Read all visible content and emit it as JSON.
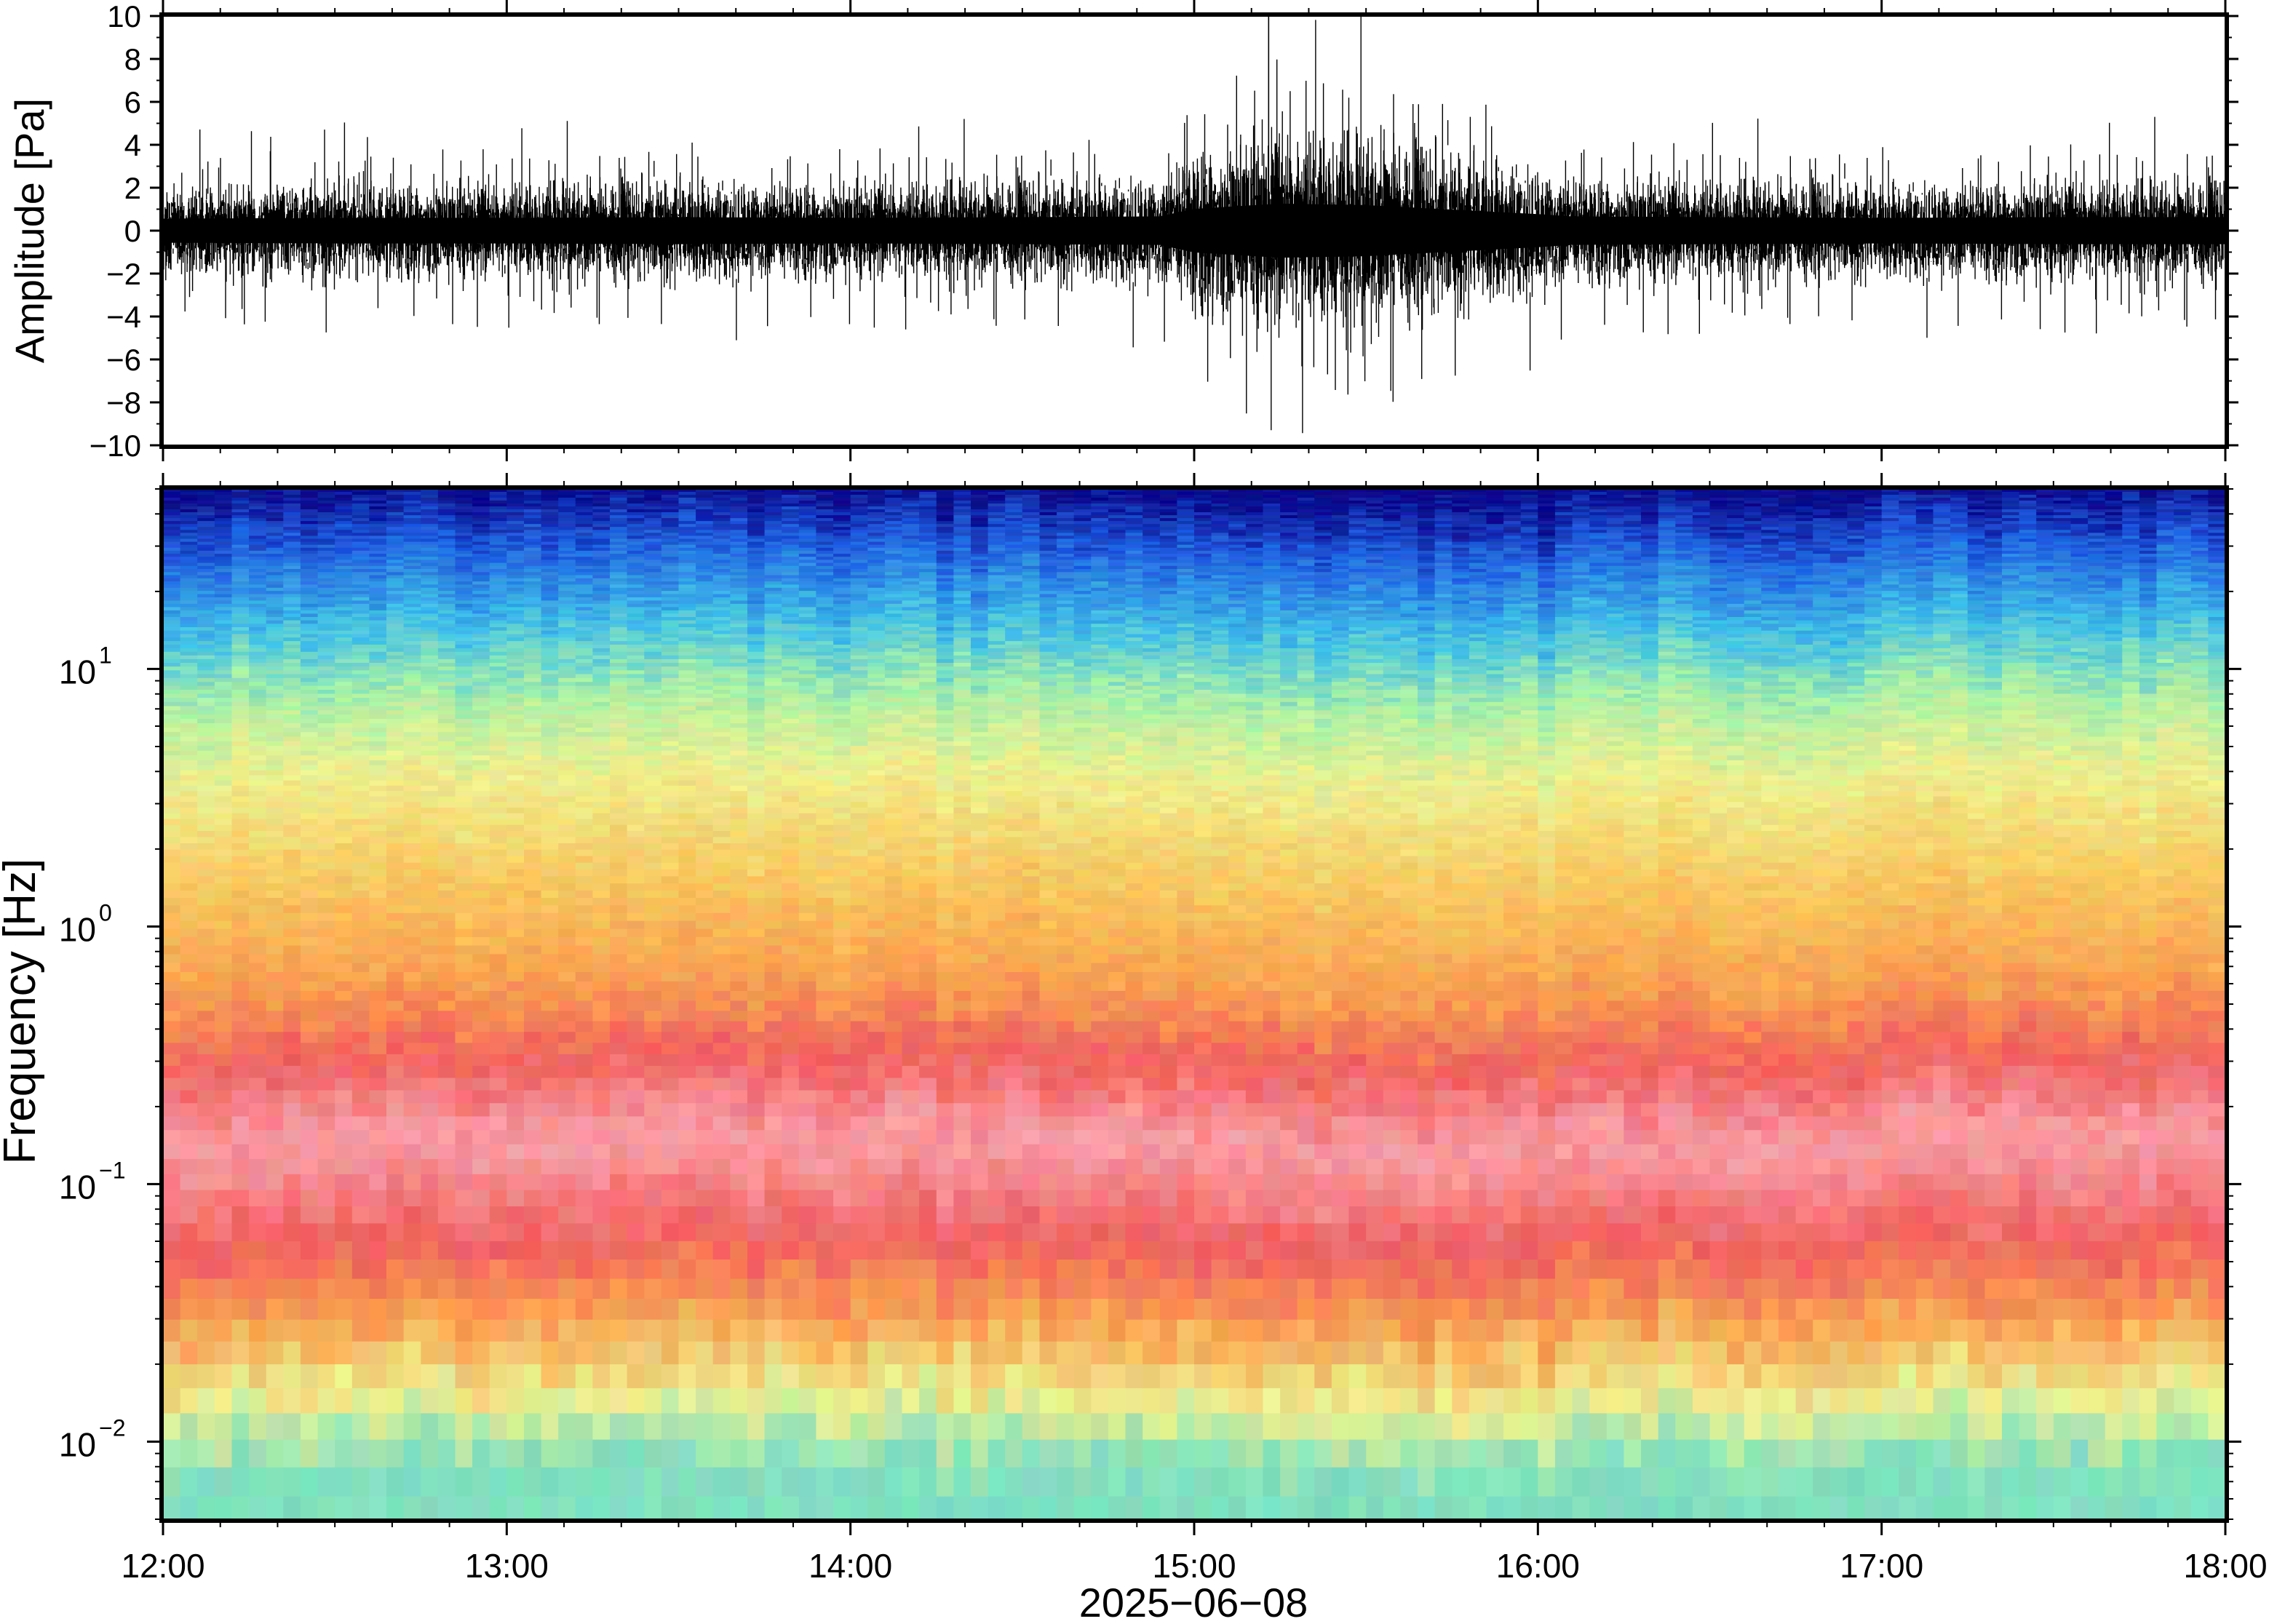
{
  "chart_data": [
    {
      "type": "line",
      "title": "",
      "ylabel": "Amplitude [Pa]",
      "xlabel": "",
      "xlim": [
        "12:00",
        "18:00"
      ],
      "ylim": [
        -10,
        10
      ],
      "yticks": [
        "10",
        "8",
        "6",
        "4",
        "2",
        "0",
        "−2",
        "−4",
        "−6",
        "−8",
        "−10"
      ],
      "yvalues": [
        10,
        8,
        6,
        4,
        2,
        0,
        -2,
        -4,
        -6,
        -8,
        -10
      ],
      "envelope": {
        "x_hours": [
          12.0,
          12.5,
          13.0,
          13.5,
          14.0,
          14.5,
          14.9,
          15.0,
          15.25,
          15.5,
          15.75,
          16.0,
          16.1,
          16.5,
          17.0,
          17.5,
          18.0
        ],
        "typical_amplitude_pa": [
          1.6,
          1.7,
          1.7,
          1.8,
          1.7,
          1.8,
          1.9,
          2.9,
          3.6,
          3.4,
          2.8,
          2.2,
          1.9,
          1.8,
          1.7,
          1.8,
          1.8
        ]
      },
      "peak": {
        "time": "15:13",
        "value": 10
      },
      "grid": false,
      "series": [
        {
          "name": "",
          "color": "#000000"
        }
      ]
    },
    {
      "type": "heatmap",
      "title": "",
      "ylabel": "Frequency [Hz]",
      "xlabel": "2025−06−08",
      "xlim": [
        "12:00",
        "18:00"
      ],
      "yscale": "log",
      "ylim": [
        0.005,
        50
      ],
      "ytick_labels": [
        {
          "base": "10",
          "exp": "1",
          "value": 10
        },
        {
          "base": "10",
          "exp": "0",
          "value": 1
        },
        {
          "base": "10",
          "exp": "−1",
          "value": 0.1
        },
        {
          "base": "10",
          "exp": "−2",
          "value": 0.01
        }
      ],
      "xticks": [
        "12:00",
        "13:00",
        "14:00",
        "15:00",
        "16:00",
        "17:00",
        "18:00"
      ],
      "xtick_hours": [
        12,
        13,
        14,
        15,
        16,
        17,
        18
      ],
      "colormap": [
        "#0a0a8c",
        "#1f46d8",
        "#3aa0f0",
        "#5fd8e0",
        "#a8f0a8",
        "#eef090",
        "#f8c860",
        "#f89850",
        "#f06060",
        "#f8a0a8"
      ],
      "band_profile": {
        "frequency_hz": [
          50,
          30,
          15,
          8,
          4,
          1.5,
          0.6,
          0.3,
          0.15,
          0.06,
          0.03,
          0.015,
          0.008
        ],
        "color": [
          "#0a0a8c",
          "#1f5ee0",
          "#40c0e8",
          "#a8f0a8",
          "#eef090",
          "#f8c860",
          "#f8a050",
          "#f06060",
          "#f8a0a8",
          "#f06060",
          "#f8a050",
          "#eef090",
          "#80e0c0"
        ]
      },
      "grid": false,
      "legend": "none"
    }
  ]
}
